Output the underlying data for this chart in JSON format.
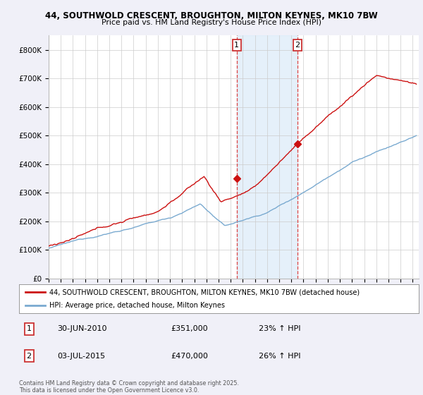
{
  "title_line1": "44, SOUTHWOLD CRESCENT, BROUGHTON, MILTON KEYNES, MK10 7BW",
  "title_line2": "Price paid vs. HM Land Registry's House Price Index (HPI)",
  "background_color": "#f0f0f8",
  "plot_bg_color": "#ffffff",
  "hpi_color": "#7aaad0",
  "price_color": "#cc1111",
  "vline_color": "#dd4444",
  "sale1_date": "30-JUN-2010",
  "sale1_price": 351000,
  "sale1_hpi": "23% ↑ HPI",
  "sale1_x": 2010.5,
  "sale2_date": "03-JUL-2015",
  "sale2_price": 470000,
  "sale2_hpi": "26% ↑ HPI",
  "sale2_x": 2015.5,
  "xmin": 1995,
  "xmax": 2025.5,
  "ymin": 0,
  "ymax": 850000,
  "yticks": [
    0,
    100000,
    200000,
    300000,
    400000,
    500000,
    600000,
    700000,
    800000
  ],
  "ytick_labels": [
    "£0",
    "£100K",
    "£200K",
    "£300K",
    "£400K",
    "£500K",
    "£600K",
    "£700K",
    "£800K"
  ],
  "legend_label1": "44, SOUTHWOLD CRESCENT, BROUGHTON, MILTON KEYNES, MK10 7BW (detached house)",
  "legend_label2": "HPI: Average price, detached house, Milton Keynes",
  "footnote": "Contains HM Land Registry data © Crown copyright and database right 2025.\nThis data is licensed under the Open Government Licence v3.0."
}
